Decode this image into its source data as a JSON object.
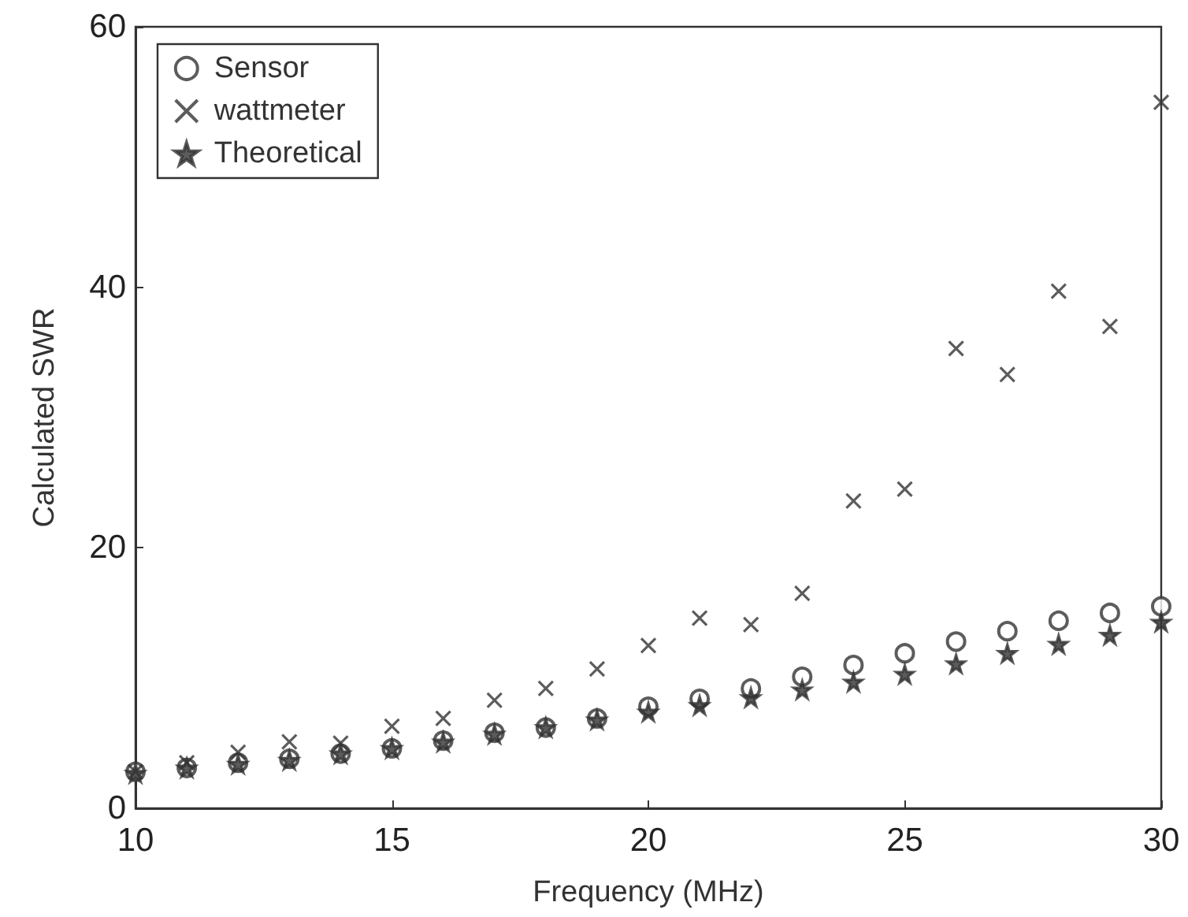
{
  "chart_data": {
    "type": "scatter",
    "xlabel": "Frequency (MHz)",
    "ylabel": "Calculated SWR",
    "x": [
      10,
      11,
      12,
      13,
      14,
      15,
      16,
      17,
      18,
      19,
      20,
      21,
      22,
      23,
      24,
      25,
      26,
      27,
      28,
      29,
      30
    ],
    "series": [
      {
        "name": "Sensor",
        "color": "#333333",
        "marker": "circle",
        "values": [
          2.8,
          3.1,
          3.5,
          3.8,
          4.2,
          4.6,
          5.2,
          5.8,
          6.2,
          6.9,
          7.8,
          8.4,
          9.2,
          10.1,
          11.0,
          11.9,
          12.8,
          13.6,
          14.4,
          15.0,
          15.5
        ]
      },
      {
        "name": "wattmeter",
        "color": "#333333",
        "marker": "cross",
        "values": [
          2.8,
          3.5,
          4.3,
          5.1,
          5.0,
          6.3,
          6.9,
          8.3,
          9.2,
          10.7,
          12.5,
          14.6,
          14.1,
          16.5,
          23.6,
          24.5,
          35.3,
          33.3,
          39.7,
          37.0,
          54.2
        ]
      },
      {
        "name": "Theoretical",
        "color": "#333333",
        "marker": "star",
        "values": [
          2.7,
          3.1,
          3.4,
          3.7,
          4.2,
          4.6,
          5.1,
          5.7,
          6.2,
          6.8,
          7.4,
          7.9,
          8.5,
          9.1,
          9.7,
          10.3,
          11.1,
          11.9,
          12.6,
          13.3,
          14.3
        ]
      }
    ],
    "xlim": [
      10,
      30
    ],
    "xticks": [
      10,
      15,
      20,
      25,
      30
    ],
    "ylim": [
      0,
      60
    ],
    "yticks": [
      0,
      20,
      40,
      60
    ],
    "grid": false,
    "legend": "top left"
  }
}
